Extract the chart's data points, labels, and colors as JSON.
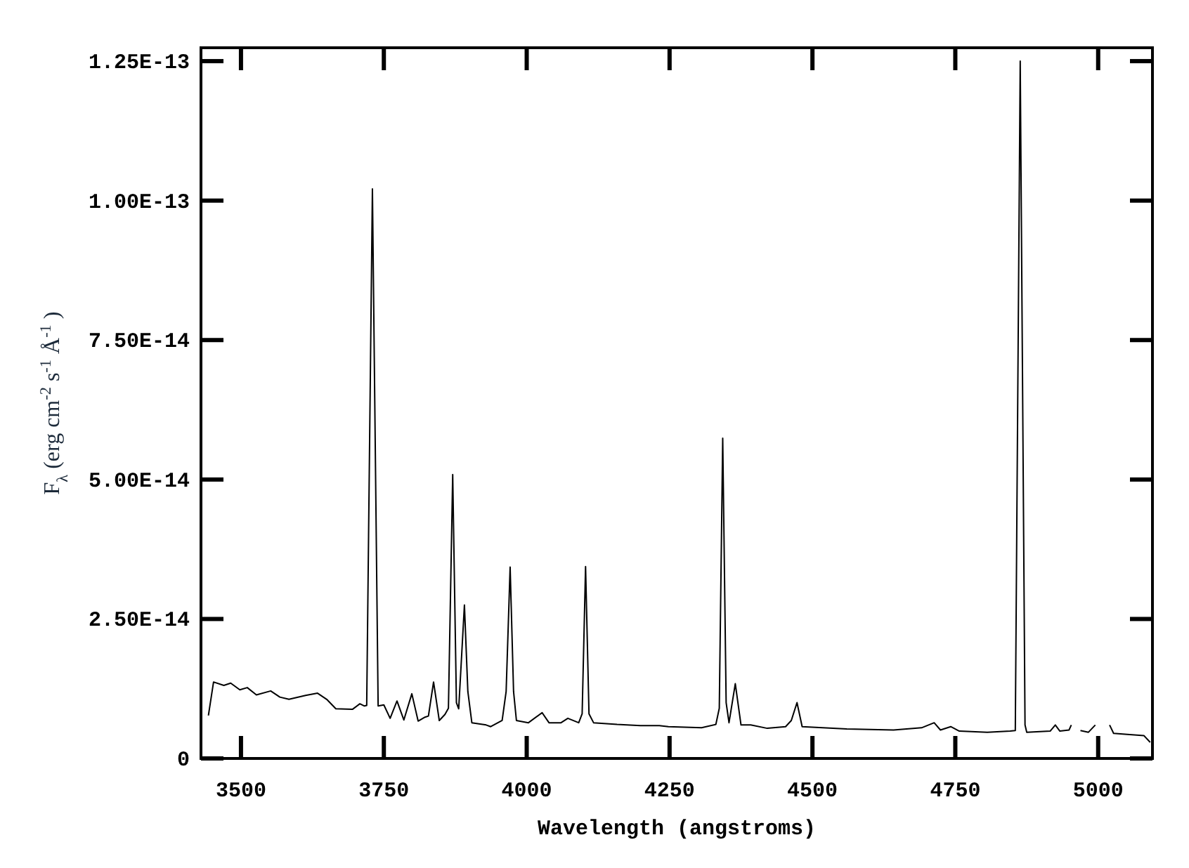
{
  "chart_data": {
    "type": "line",
    "xlabel": "Wavelength (angstroms)",
    "ylabel": "F$_{λ}$ (erg cm$^{-2}$ s$^{-1}$ Å$^{-1}$ )",
    "xlim": [
      3430,
      5095
    ],
    "ylim": [
      0,
      1.274e-13
    ],
    "xticks": [
      3500,
      3750,
      4000,
      4250,
      4500,
      4750,
      5000
    ],
    "yticks": [
      0,
      {
        "value": 2.5e-14,
        "label": "2.50E-14"
      },
      {
        "value": 5e-14,
        "label": "5.00E-14"
      },
      {
        "value": 7.5e-14,
        "label": "7.50E-14"
      },
      {
        "value": 1e-13,
        "label": "1.00E-13"
      },
      {
        "value": 1.25e-13,
        "label": "1.25E-13"
      }
    ],
    "grid": false,
    "marker": "none",
    "line_style": "solid",
    "series": [
      {
        "color": "#000000",
        "x": [
          3443,
          3452,
          3470,
          3482,
          3498,
          3511,
          3527,
          3552,
          3568,
          3584,
          3613,
          3634,
          3650,
          3666,
          3695,
          3708,
          3716,
          3720,
          3730,
          3740,
          3750,
          3761,
          3773,
          3785,
          3799,
          3810,
          3822,
          3828,
          3837,
          3847,
          3857,
          3863,
          3870.5,
          3877,
          3881,
          3891,
          3897,
          3904,
          3929,
          3937,
          3957,
          3964,
          3971,
          3977,
          3982,
          4003,
          4027,
          4039,
          4060,
          4072,
          4091,
          4097,
          4103,
          4109,
          4117,
          4158,
          4199,
          4232,
          4248,
          4306,
          4331,
          4337,
          4343,
          4349,
          4354,
          4365,
          4375,
          4392,
          4421,
          4453,
          4463,
          4473,
          4482,
          4560,
          4642,
          4691,
          4713,
          4724,
          4742,
          4757,
          4806,
          4846,
          4855,
          4863.6,
          4872,
          4875,
          4916,
          4925,
          4933,
          4949,
          4953,
          4958,
          4962,
          4967,
          4969,
          4983,
          4995,
          5001,
          5009,
          5017,
          5020,
          5027,
          5051,
          5080,
          5091
        ],
        "values": [
          7.7e-15,
          1.37e-14,
          1.31e-14,
          1.35e-14,
          1.23e-14,
          1.27e-14,
          1.14e-14,
          1.21e-14,
          1.1e-14,
          1.06e-14,
          1.13e-14,
          1.17e-14,
          1.06e-14,
          8.9e-15,
          8.8e-15,
          9.8e-15,
          9.4e-15,
          9.5e-15,
          1.021e-13,
          9.4e-15,
          9.6e-15,
          7.2e-15,
          1.03e-14,
          6.9e-15,
          1.16e-14,
          6.7e-15,
          7.4e-15,
          7.6e-15,
          1.37e-14,
          6.8e-15,
          7.9e-15,
          9e-15,
          5.09e-14,
          1e-14,
          8.9e-15,
          2.75e-14,
          1.2e-14,
          6.4e-15,
          6e-15,
          5.7e-15,
          6.8e-15,
          1.2e-14,
          3.43e-14,
          1.2e-14,
          6.8e-15,
          6.4e-15,
          8.2e-15,
          6.4e-15,
          6.4e-15,
          7.2e-15,
          6.4e-15,
          8e-15,
          3.44e-14,
          8e-15,
          6.4e-15,
          6.1e-15,
          5.9e-15,
          5.9e-15,
          5.7e-15,
          5.5e-15,
          6.1e-15,
          9e-15,
          5.74e-14,
          1e-14,
          6.4e-15,
          1.34e-14,
          6e-15,
          6e-15,
          5.4e-15,
          5.7e-15,
          6.8e-15,
          1e-14,
          5.7e-15,
          5.3e-15,
          5.1e-15,
          5.5e-15,
          6.4e-15,
          5.1e-15,
          5.7e-15,
          4.9e-15,
          4.7e-15,
          4.9e-15,
          5e-15,
          1.25e-13,
          6e-15,
          4.7e-15,
          4.9e-15,
          6e-15,
          4.9e-15,
          5.1e-15,
          6e-15,
          null,
          null,
          null,
          5e-15,
          4.7e-15,
          6e-15,
          null,
          null,
          null,
          6e-15,
          4.5e-15,
          4.3e-15,
          4.1e-15,
          2.9e-15
        ]
      }
    ]
  }
}
